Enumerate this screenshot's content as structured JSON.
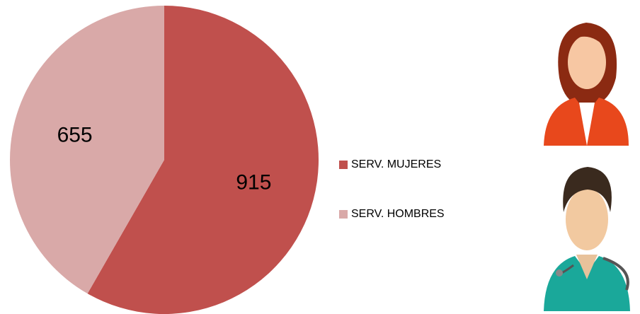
{
  "chart_data": {
    "type": "pie",
    "categories": [
      "SERV. MUJERES",
      "SERV. HOMBRES"
    ],
    "values": [
      915,
      655
    ],
    "colors": [
      "#c0504d",
      "#d9a9a8"
    ],
    "start_angle": 0,
    "direction": "clockwise",
    "legend": "right"
  }
}
